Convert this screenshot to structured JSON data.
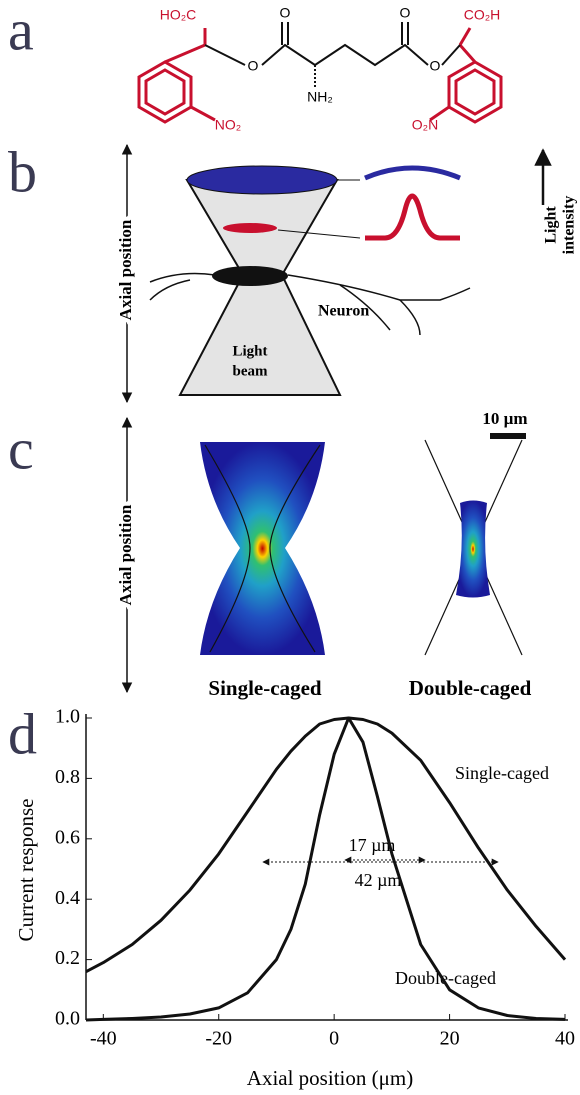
{
  "panels": {
    "a": {
      "letter": "a",
      "atoms": [
        "HO₂C",
        "O",
        "O",
        "O",
        "O",
        "CO₂H",
        "NH₂",
        "NO₂",
        "O₂N"
      ]
    },
    "b": {
      "letter": "b",
      "axis_label": "Axial position",
      "intensity_label": [
        "Light",
        "intensity"
      ],
      "neuron": "Neuron",
      "beam": [
        "Light",
        "beam"
      ]
    },
    "c": {
      "letter": "c",
      "axis_label": "Axial position",
      "scale": "10 µm",
      "left": "Single-caged",
      "right": "Double-caged"
    },
    "d": {
      "letter": "d"
    }
  },
  "chart_data": {
    "type": "line",
    "xlabel": "Axial position (μm)",
    "ylabel": "Current response",
    "x": [
      -43,
      -40,
      -35,
      -30,
      -25,
      -20,
      -15,
      -10,
      -7.5,
      -5,
      -2.5,
      0,
      2.5,
      5,
      7.5,
      10,
      15,
      20,
      25,
      30,
      35,
      40
    ],
    "series": [
      {
        "name": "Single-caged",
        "color": "#111111",
        "values": [
          0.16,
          0.19,
          0.25,
          0.33,
          0.43,
          0.55,
          0.69,
          0.83,
          0.89,
          0.94,
          0.98,
          0.995,
          1.0,
          0.995,
          0.98,
          0.95,
          0.86,
          0.72,
          0.57,
          0.43,
          0.31,
          0.2
        ]
      },
      {
        "name": "Double-caged",
        "color": "#111111",
        "values": [
          0,
          0.002,
          0.005,
          0.01,
          0.02,
          0.04,
          0.09,
          0.2,
          0.3,
          0.45,
          0.68,
          0.88,
          1.0,
          0.92,
          0.74,
          0.55,
          0.25,
          0.1,
          0.04,
          0.015,
          0.005,
          0.002
        ]
      }
    ],
    "annotations": [
      "17 µm",
      "42 µm"
    ],
    "xlim": [
      -43,
      40
    ],
    "xticks": [
      -40,
      -20,
      0,
      20,
      40
    ],
    "ylim": [
      0,
      1.0
    ],
    "yticks": [
      {
        "value": 0,
        "label": "0.0"
      },
      0.2,
      0.4,
      0.6,
      0.8,
      {
        "value": 1,
        "label": "1.0"
      }
    ]
  }
}
